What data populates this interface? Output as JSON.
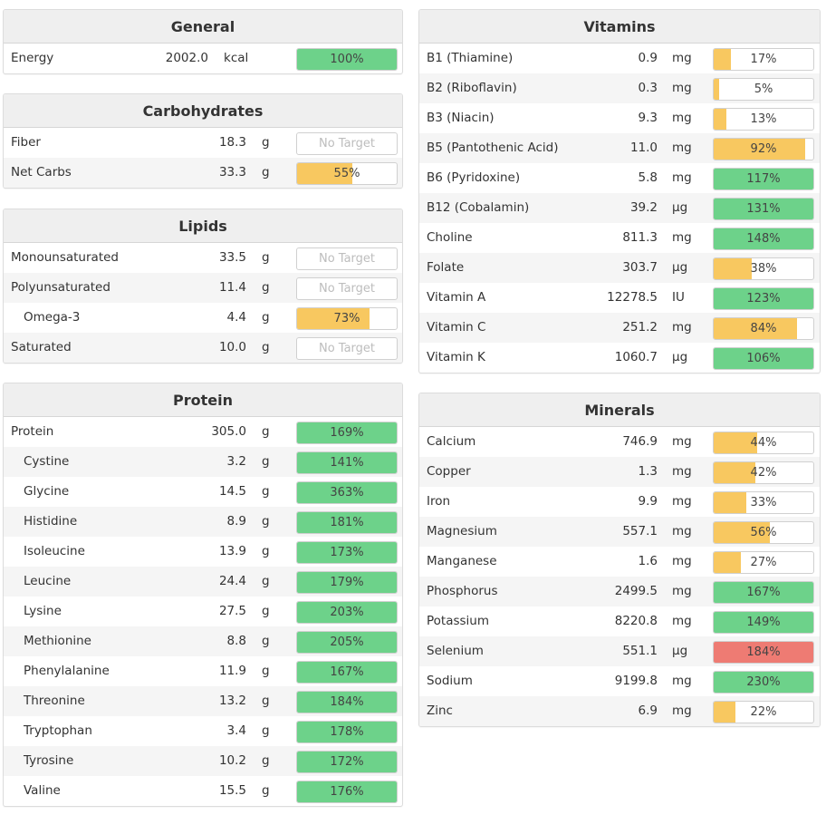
{
  "colors": {
    "green": "#6dd28a",
    "yellow": "#f8c860",
    "red": "#ee7b73"
  },
  "panels": [
    {
      "id": "general",
      "title": "General",
      "rows": [
        {
          "name": "Energy",
          "amount": "2002.0",
          "unit": "kcal",
          "pct_label": "100%",
          "fraction": 1.0,
          "status": "green"
        }
      ]
    },
    {
      "id": "carbs",
      "title": "Carbohydrates",
      "rows": [
        {
          "name": "Fiber",
          "amount": "18.3",
          "unit": "g",
          "pct_label": "No Target",
          "fraction": 0,
          "status": "none"
        },
        {
          "name": "Net Carbs",
          "amount": "33.3",
          "unit": "g",
          "pct_label": "55%",
          "fraction": 0.55,
          "status": "yellow"
        }
      ]
    },
    {
      "id": "lipids",
      "title": "Lipids",
      "rows": [
        {
          "name": "Monounsaturated",
          "amount": "33.5",
          "unit": "g",
          "pct_label": "No Target",
          "fraction": 0,
          "status": "none"
        },
        {
          "name": "Polyunsaturated",
          "amount": "11.4",
          "unit": "g",
          "pct_label": "No Target",
          "fraction": 0,
          "status": "none"
        },
        {
          "name": "Omega-3",
          "amount": "4.4",
          "unit": "g",
          "pct_label": "73%",
          "fraction": 0.73,
          "status": "yellow",
          "sub": true
        },
        {
          "name": "Saturated",
          "amount": "10.0",
          "unit": "g",
          "pct_label": "No Target",
          "fraction": 0,
          "status": "none"
        }
      ]
    },
    {
      "id": "protein",
      "title": "Protein",
      "rows": [
        {
          "name": "Protein",
          "amount": "305.0",
          "unit": "g",
          "pct_label": "169%",
          "fraction": 1.0,
          "status": "green"
        },
        {
          "name": "Cystine",
          "amount": "3.2",
          "unit": "g",
          "pct_label": "141%",
          "fraction": 1.0,
          "status": "green",
          "sub": true
        },
        {
          "name": "Glycine",
          "amount": "14.5",
          "unit": "g",
          "pct_label": "363%",
          "fraction": 1.0,
          "status": "green",
          "sub": true
        },
        {
          "name": "Histidine",
          "amount": "8.9",
          "unit": "g",
          "pct_label": "181%",
          "fraction": 1.0,
          "status": "green",
          "sub": true
        },
        {
          "name": "Isoleucine",
          "amount": "13.9",
          "unit": "g",
          "pct_label": "173%",
          "fraction": 1.0,
          "status": "green",
          "sub": true
        },
        {
          "name": "Leucine",
          "amount": "24.4",
          "unit": "g",
          "pct_label": "179%",
          "fraction": 1.0,
          "status": "green",
          "sub": true
        },
        {
          "name": "Lysine",
          "amount": "27.5",
          "unit": "g",
          "pct_label": "203%",
          "fraction": 1.0,
          "status": "green",
          "sub": true
        },
        {
          "name": "Methionine",
          "amount": "8.8",
          "unit": "g",
          "pct_label": "205%",
          "fraction": 1.0,
          "status": "green",
          "sub": true
        },
        {
          "name": "Phenylalanine",
          "amount": "11.9",
          "unit": "g",
          "pct_label": "167%",
          "fraction": 1.0,
          "status": "green",
          "sub": true
        },
        {
          "name": "Threonine",
          "amount": "13.2",
          "unit": "g",
          "pct_label": "184%",
          "fraction": 1.0,
          "status": "green",
          "sub": true
        },
        {
          "name": "Tryptophan",
          "amount": "3.4",
          "unit": "g",
          "pct_label": "178%",
          "fraction": 1.0,
          "status": "green",
          "sub": true
        },
        {
          "name": "Tyrosine",
          "amount": "10.2",
          "unit": "g",
          "pct_label": "172%",
          "fraction": 1.0,
          "status": "green",
          "sub": true
        },
        {
          "name": "Valine",
          "amount": "15.5",
          "unit": "g",
          "pct_label": "176%",
          "fraction": 1.0,
          "status": "green",
          "sub": true
        }
      ]
    },
    {
      "id": "vitamins",
      "title": "Vitamins",
      "rows": [
        {
          "name": "B1 (Thiamine)",
          "amount": "0.9",
          "unit": "mg",
          "pct_label": "17%",
          "fraction": 0.17,
          "status": "yellow"
        },
        {
          "name": "B2 (Riboflavin)",
          "amount": "0.3",
          "unit": "mg",
          "pct_label": "5%",
          "fraction": 0.05,
          "status": "yellow"
        },
        {
          "name": "B3 (Niacin)",
          "amount": "9.3",
          "unit": "mg",
          "pct_label": "13%",
          "fraction": 0.13,
          "status": "yellow"
        },
        {
          "name": "B5 (Pantothenic Acid)",
          "amount": "11.0",
          "unit": "mg",
          "pct_label": "92%",
          "fraction": 0.92,
          "status": "yellow"
        },
        {
          "name": "B6 (Pyridoxine)",
          "amount": "5.8",
          "unit": "mg",
          "pct_label": "117%",
          "fraction": 1.0,
          "status": "green"
        },
        {
          "name": "B12 (Cobalamin)",
          "amount": "39.2",
          "unit": "µg",
          "pct_label": "131%",
          "fraction": 1.0,
          "status": "green"
        },
        {
          "name": "Choline",
          "amount": "811.3",
          "unit": "mg",
          "pct_label": "148%",
          "fraction": 1.0,
          "status": "green"
        },
        {
          "name": "Folate",
          "amount": "303.7",
          "unit": "µg",
          "pct_label": "38%",
          "fraction": 0.38,
          "status": "yellow"
        },
        {
          "name": "Vitamin A",
          "amount": "12278.5",
          "unit": "IU",
          "pct_label": "123%",
          "fraction": 1.0,
          "status": "green"
        },
        {
          "name": "Vitamin C",
          "amount": "251.2",
          "unit": "mg",
          "pct_label": "84%",
          "fraction": 0.84,
          "status": "yellow"
        },
        {
          "name": "Vitamin K",
          "amount": "1060.7",
          "unit": "µg",
          "pct_label": "106%",
          "fraction": 1.0,
          "status": "green"
        }
      ]
    },
    {
      "id": "minerals",
      "title": "Minerals",
      "rows": [
        {
          "name": "Calcium",
          "amount": "746.9",
          "unit": "mg",
          "pct_label": "44%",
          "fraction": 0.44,
          "status": "yellow"
        },
        {
          "name": "Copper",
          "amount": "1.3",
          "unit": "mg",
          "pct_label": "42%",
          "fraction": 0.42,
          "status": "yellow"
        },
        {
          "name": "Iron",
          "amount": "9.9",
          "unit": "mg",
          "pct_label": "33%",
          "fraction": 0.33,
          "status": "yellow"
        },
        {
          "name": "Magnesium",
          "amount": "557.1",
          "unit": "mg",
          "pct_label": "56%",
          "fraction": 0.56,
          "status": "yellow"
        },
        {
          "name": "Manganese",
          "amount": "1.6",
          "unit": "mg",
          "pct_label": "27%",
          "fraction": 0.27,
          "status": "yellow"
        },
        {
          "name": "Phosphorus",
          "amount": "2499.5",
          "unit": "mg",
          "pct_label": "167%",
          "fraction": 1.0,
          "status": "green"
        },
        {
          "name": "Potassium",
          "amount": "8220.8",
          "unit": "mg",
          "pct_label": "149%",
          "fraction": 1.0,
          "status": "green"
        },
        {
          "name": "Selenium",
          "amount": "551.1",
          "unit": "µg",
          "pct_label": "184%",
          "fraction": 1.0,
          "status": "red"
        },
        {
          "name": "Sodium",
          "amount": "9199.8",
          "unit": "mg",
          "pct_label": "230%",
          "fraction": 1.0,
          "status": "green"
        },
        {
          "name": "Zinc",
          "amount": "6.9",
          "unit": "mg",
          "pct_label": "22%",
          "fraction": 0.22,
          "status": "yellow"
        }
      ]
    }
  ]
}
